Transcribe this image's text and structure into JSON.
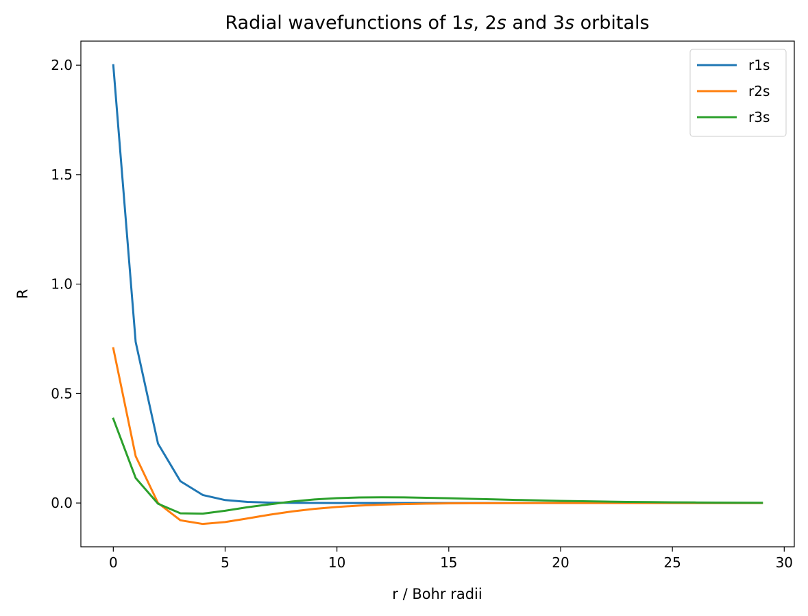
{
  "chart_data": {
    "type": "line",
    "title_parts": [
      {
        "text": "Radial wavefunctions of 1",
        "italic": false
      },
      {
        "text": "s",
        "italic": true
      },
      {
        "text": ", 2",
        "italic": false
      },
      {
        "text": "s",
        "italic": true
      },
      {
        "text": " and 3",
        "italic": false
      },
      {
        "text": "s",
        "italic": true
      },
      {
        "text": " orbitals",
        "italic": false
      }
    ],
    "xlabel": "r / Bohr radii",
    "ylabel": "R",
    "xlim": [
      -1.45,
      30.45
    ],
    "ylim": [
      -0.2,
      2.11
    ],
    "xticks": [
      0,
      5,
      10,
      15,
      20,
      25,
      30
    ],
    "xtick_labels": [
      "0",
      "5",
      "10",
      "15",
      "20",
      "25",
      "30"
    ],
    "yticks": [
      0.0,
      0.5,
      1.0,
      1.5,
      2.0
    ],
    "ytick_labels": [
      "0.0",
      "0.5",
      "1.0",
      "1.5",
      "2.0"
    ],
    "grid": false,
    "legend_position": "top-right",
    "x": [
      0,
      1,
      2,
      3,
      4,
      5,
      6,
      7,
      8,
      9,
      10,
      11,
      12,
      13,
      14,
      15,
      16,
      17,
      18,
      19,
      20,
      21,
      22,
      23,
      24,
      25,
      26,
      27,
      28,
      29
    ],
    "series": [
      {
        "name": "r1s",
        "color": "#1f77b4",
        "values": [
          2.0,
          0.736,
          0.271,
          0.0996,
          0.0366,
          0.0135,
          0.005,
          0.0018,
          0.0007,
          0.0002,
          0.0001,
          0.0,
          0.0,
          0.0,
          0.0,
          0.0,
          0.0,
          0.0,
          0.0,
          0.0,
          0.0,
          0.0,
          0.0,
          0.0,
          0.0,
          0.0,
          0.0,
          0.0,
          0.0,
          0.0
        ]
      },
      {
        "name": "r2s",
        "color": "#ff7f0e",
        "values": [
          0.707,
          0.214,
          0.0,
          -0.0789,
          -0.0957,
          -0.087,
          -0.0704,
          -0.0532,
          -0.0383,
          -0.0266,
          -0.0179,
          -0.0117,
          -0.0075,
          -0.0047,
          -0.0029,
          -0.0018,
          -0.0011,
          -0.0007,
          -0.0004,
          -0.0002,
          -0.0001,
          -0.0001,
          0.0,
          0.0,
          0.0,
          0.0,
          0.0,
          0.0,
          0.0,
          0.0
        ]
      },
      {
        "name": "r3s",
        "color": "#2ca02c",
        "values": [
          0.385,
          0.1143,
          -0.0033,
          -0.0469,
          -0.0486,
          -0.0353,
          -0.0192,
          -0.006,
          0.0069,
          0.0163,
          0.0222,
          0.0253,
          0.0262,
          0.0256,
          0.024,
          0.0218,
          0.0193,
          0.0167,
          0.0142,
          0.0119,
          0.0099,
          0.0081,
          0.0065,
          0.0052,
          0.0041,
          0.0032,
          0.0025,
          0.0019,
          0.0015,
          0.0011
        ]
      }
    ]
  }
}
